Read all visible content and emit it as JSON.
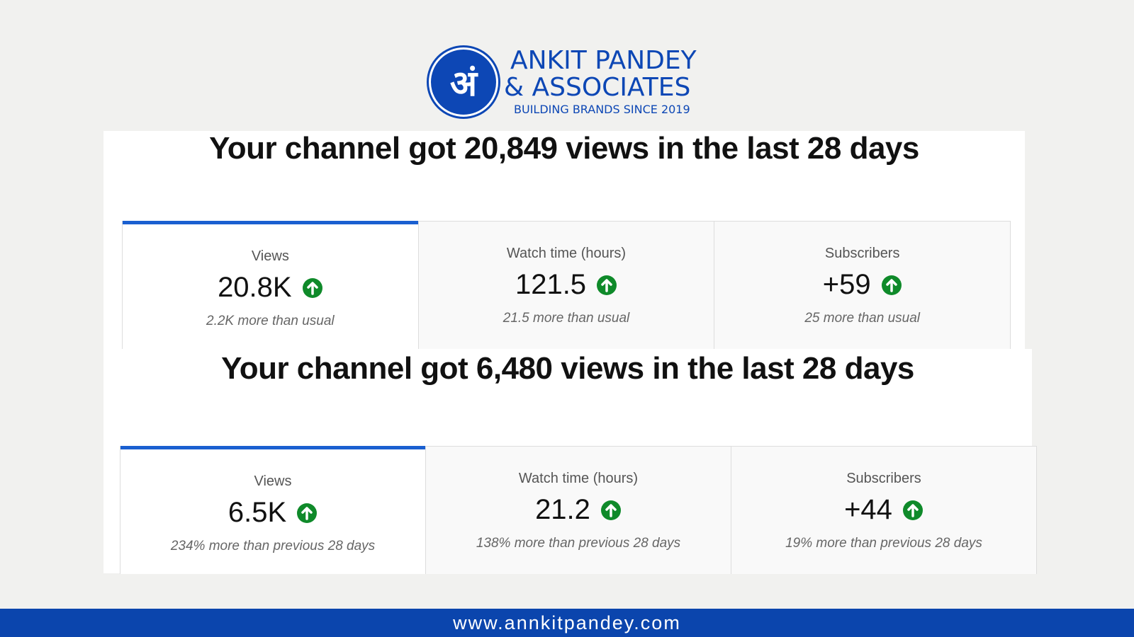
{
  "logo": {
    "glyph": "अं",
    "name_line1": "ANKIT PANDEY",
    "name_line2": "& ASSOCIATES",
    "tagline": "BUILDING BRANDS SINCE 2019"
  },
  "panels": [
    {
      "headline": "Your channel got 20,849 views in the last 28 days",
      "cards": [
        {
          "label": "Views",
          "value": "20.8K",
          "note": "2.2K more than usual"
        },
        {
          "label": "Watch time (hours)",
          "value": "121.5",
          "note": "21.5 more than usual"
        },
        {
          "label": "Subscribers",
          "value": "+59",
          "note": "25 more than usual"
        }
      ]
    },
    {
      "headline": "Your channel got 6,480 views in the last 28 days",
      "cards": [
        {
          "label": "Views",
          "value": "6.5K",
          "note": "234% more than previous 28 days"
        },
        {
          "label": "Watch time (hours)",
          "value": "21.2",
          "note": "138% more than previous 28 days"
        },
        {
          "label": "Subscribers",
          "value": "+44",
          "note": "19% more than previous 28 days"
        }
      ]
    }
  ],
  "footer": {
    "url": "www.annkitpandey.com"
  }
}
